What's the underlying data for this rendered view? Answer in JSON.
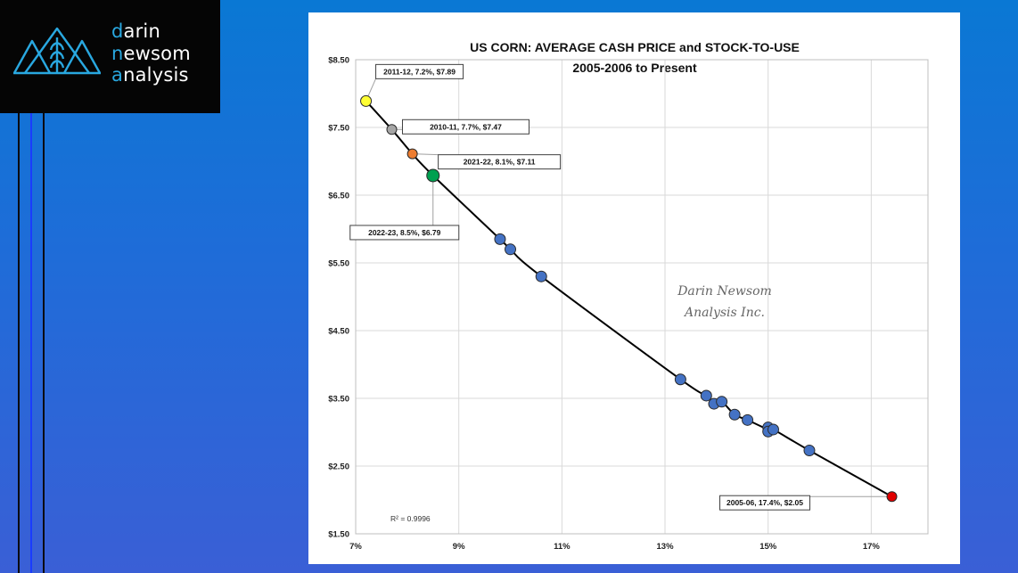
{
  "logo": {
    "line1_accent": "d",
    "line1_rest": "arin",
    "line2_accent": "n",
    "line2_rest": "ewsom",
    "line3_accent": "a",
    "line3_rest": "nalysis",
    "icon": "mountains-wheat-icon"
  },
  "colors": {
    "background": "#1f6cd8",
    "logo_bg": "#050505",
    "accent": "#29a8e0",
    "point_default": "#4472c4",
    "point_yellow": "#ffff33",
    "point_gray": "#a6a6a6",
    "point_orange": "#ed7d31",
    "point_green": "#00a050",
    "point_red": "#e00000"
  },
  "chart_data": {
    "type": "scatter",
    "title": "US CORN: AVERAGE CASH PRICE and STOCK-TO-USE",
    "subtitle": "2005-2006 to Present",
    "xlabel": "",
    "ylabel": "",
    "xlim": [
      7,
      18.1
    ],
    "ylim": [
      1.5,
      8.5
    ],
    "x_ticks": [
      7,
      9,
      11,
      13,
      15,
      17
    ],
    "x_tick_labels": [
      "7%",
      "9%",
      "11%",
      "13%",
      "15%",
      "17%"
    ],
    "y_ticks": [
      1.5,
      2.5,
      3.5,
      4.5,
      5.5,
      6.5,
      7.5,
      8.5
    ],
    "y_tick_labels": [
      "$1.50",
      "$2.50",
      "$3.50",
      "$4.50",
      "$5.50",
      "$6.50",
      "$7.50",
      "$8.50"
    ],
    "grid": true,
    "points": [
      {
        "x": 7.2,
        "y": 7.89,
        "color": "yellow",
        "label": "2011-12, 7.2%, $7.89"
      },
      {
        "x": 7.7,
        "y": 7.47,
        "color": "gray",
        "label": "2010-11, 7.7%, $7.47"
      },
      {
        "x": 8.1,
        "y": 7.11,
        "color": "orange",
        "label": "2021-22, 8.1%, $7.11"
      },
      {
        "x": 8.5,
        "y": 6.79,
        "color": "green",
        "label": "2022-23, 8.5%, $6.79"
      },
      {
        "x": 9.8,
        "y": 5.85,
        "color": "blue",
        "label": ""
      },
      {
        "x": 10.0,
        "y": 5.7,
        "color": "blue",
        "label": ""
      },
      {
        "x": 10.6,
        "y": 5.3,
        "color": "blue",
        "label": ""
      },
      {
        "x": 13.3,
        "y": 3.78,
        "color": "blue",
        "label": ""
      },
      {
        "x": 13.8,
        "y": 3.54,
        "color": "blue",
        "label": ""
      },
      {
        "x": 13.95,
        "y": 3.42,
        "color": "blue",
        "label": ""
      },
      {
        "x": 14.1,
        "y": 3.45,
        "color": "blue",
        "label": ""
      },
      {
        "x": 14.35,
        "y": 3.26,
        "color": "blue",
        "label": ""
      },
      {
        "x": 14.6,
        "y": 3.18,
        "color": "blue",
        "label": ""
      },
      {
        "x": 15.0,
        "y": 3.07,
        "color": "blue",
        "label": ""
      },
      {
        "x": 15.0,
        "y": 3.01,
        "color": "blue",
        "label": ""
      },
      {
        "x": 15.1,
        "y": 3.04,
        "color": "blue",
        "label": ""
      },
      {
        "x": 15.8,
        "y": 2.73,
        "color": "blue",
        "label": ""
      },
      {
        "x": 17.4,
        "y": 2.05,
        "color": "red",
        "label": "2005-06, 17.4%, $2.05"
      }
    ],
    "trendline": {
      "type": "fitted curve",
      "r2_label": "R² = 0.9996"
    },
    "watermark": [
      "Darin Newsom",
      "Analysis Inc."
    ]
  }
}
